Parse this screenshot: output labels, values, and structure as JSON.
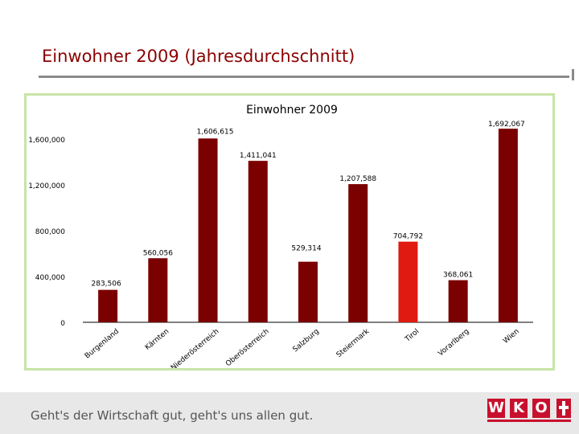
{
  "slide": {
    "title": "Einwohner 2009 (Jahresdurchschnitt)",
    "footer_slogan": "Geht's der Wirtschaft gut, geht's uns allen gut.",
    "logo_text": "WKO"
  },
  "colors": {
    "bar": "#7b0000",
    "highlight": "#e01a10",
    "title": "#8b0000",
    "frame_border": "#c8e4a8"
  },
  "chart_data": {
    "type": "bar",
    "title": "Einwohner 2009",
    "xlabel": "",
    "ylabel": "",
    "categories": [
      "Burgenland",
      "Kärnten",
      "Niederösterreich",
      "Oberösterreich",
      "Salzburg",
      "Steiermark",
      "Tirol",
      "Vorarlberg",
      "Wien"
    ],
    "values": [
      283506,
      560056,
      1606615,
      1411041,
      529314,
      1207588,
      704792,
      368061,
      1692067
    ],
    "value_labels": [
      "283,506",
      "560,056",
      "1,606,615",
      "1,411,041",
      "529,314",
      "1,207,588",
      "704,792",
      "368,061",
      "1,692,067"
    ],
    "highlight_index": 6,
    "ylim": [
      0,
      1700000
    ],
    "yticks": [
      0,
      400000,
      800000,
      1200000,
      1600000
    ],
    "ytick_labels": [
      "0",
      "400,000",
      "800,000",
      "1,200,000",
      "1,600,000"
    ],
    "grid": false,
    "legend": "none"
  }
}
